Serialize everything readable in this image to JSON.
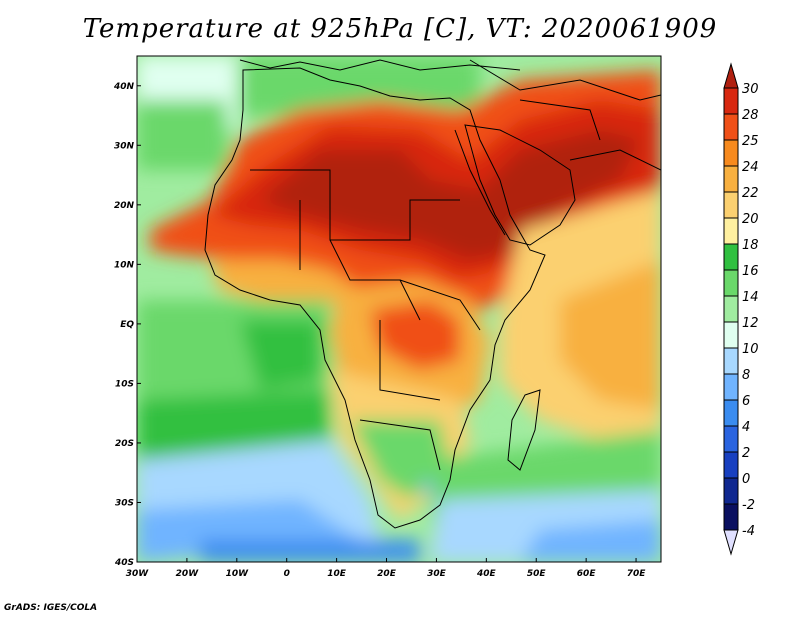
{
  "title": "Temperature at 925hPa [C], VT: 2020061909",
  "credit": "GrADS: IGES/COLA",
  "map": {
    "lon_range": [
      -30,
      75
    ],
    "lat_range": [
      -40,
      45
    ],
    "lat_ticks": [
      "40N",
      "30N",
      "20N",
      "10N",
      "EQ",
      "10S",
      "20S",
      "30S",
      "40S"
    ],
    "lon_ticks": [
      "30W",
      "20W",
      "10W",
      "0",
      "10E",
      "20E",
      "30E",
      "40E",
      "50E",
      "60E",
      "70E"
    ]
  },
  "colorbar": {
    "levels": [
      "30",
      "28",
      "25",
      "24",
      "22",
      "20",
      "18",
      "16",
      "14",
      "12",
      "10",
      "8",
      "6",
      "4",
      "2",
      "0",
      "-2",
      "-4"
    ],
    "colors": [
      "#b02010",
      "#d82810",
      "#f05018",
      "#f78a1e",
      "#f8b040",
      "#fbd070",
      "#fff0a0",
      "#30c040",
      "#6ad86a",
      "#a0eca0",
      "#e0fff0",
      "#a8d8ff",
      "#70b4ff",
      "#3a8cf0",
      "#2a64e0",
      "#1840c0",
      "#102890",
      "#0a1060",
      "#e0e0ff"
    ]
  }
}
